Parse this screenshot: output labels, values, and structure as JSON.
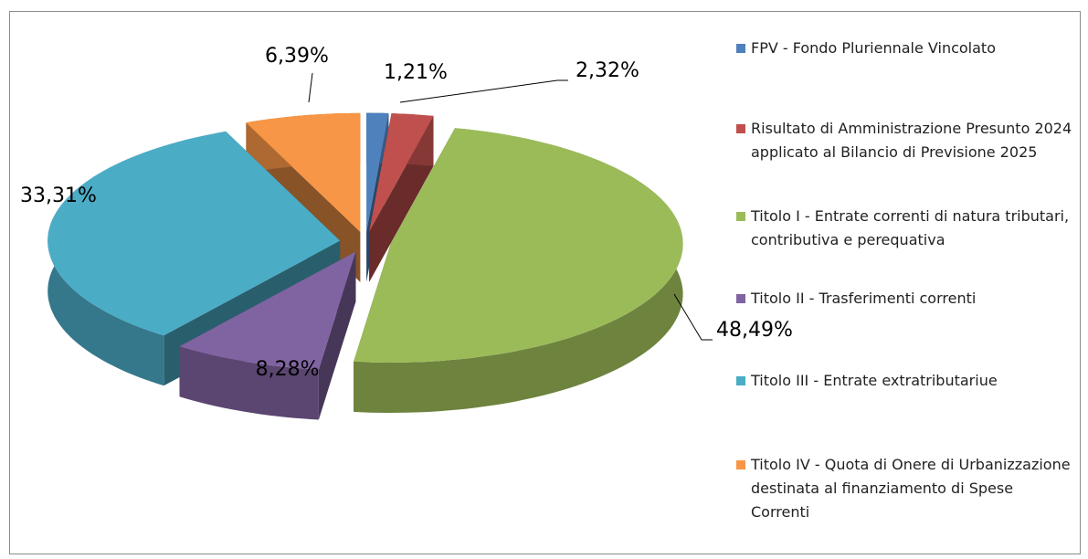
{
  "chart_data": {
    "type": "pie",
    "categories": [
      "FPV - Fondo Pluriennale Vincolato",
      "Risultato di Amministrazione Presunto 2024 applicato al Bilancio di Previsione 2025",
      "Titolo I - Entrate correnti di natura tributari, contributiva e perequativa",
      "Titolo II - Trasferimenti correnti",
      "Titolo III - Entrate extratributariue",
      "Titolo IV - Quota di Onere di Urbanizzazione destinata al finanziamento di Spese Correnti"
    ],
    "values": [
      1.21,
      2.32,
      48.49,
      8.28,
      33.31,
      6.39
    ],
    "value_labels": [
      "1,21%",
      "2,32%",
      "48,49%",
      "8,28%",
      "33,31%",
      "6,39%"
    ],
    "colors": [
      "#4f81bd",
      "#c0504d",
      "#9bbb59",
      "#8064a2",
      "#4bacc6",
      "#f79646"
    ],
    "legend": "right"
  }
}
